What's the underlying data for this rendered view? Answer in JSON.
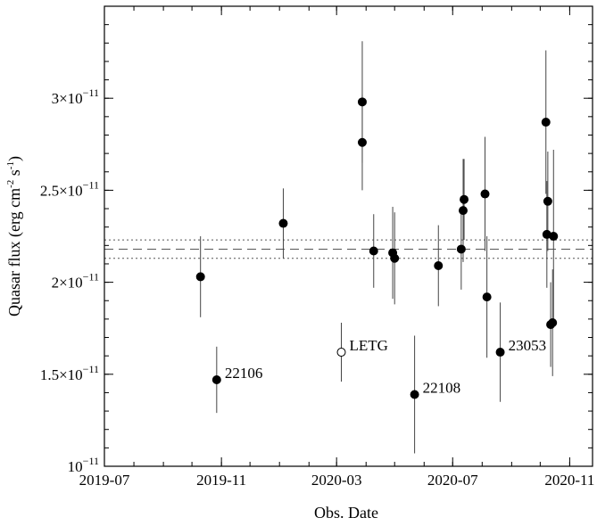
{
  "chart_data": {
    "type": "scatter",
    "xlabel": "Obs. Date",
    "ylabel_main": "Quasar flux (erg cm",
    "ylabel_sup1": "-2",
    "ylabel_mid": " s",
    "ylabel_sup2": "-1",
    "ylabel_end": ")",
    "x_range": [
      "2019-07-01",
      "2020-11-25"
    ],
    "y_range": [
      1e-11,
      3.5e-11
    ],
    "x_ticks": [
      {
        "date": "2019-07-01",
        "label": "2019-07"
      },
      {
        "date": "2019-11-01",
        "label": "2019-11"
      },
      {
        "date": "2020-03-01",
        "label": "2020-03"
      },
      {
        "date": "2020-07-01",
        "label": "2020-07"
      },
      {
        "date": "2020-11-01",
        "label": "2020-11"
      }
    ],
    "y_ticks": [
      {
        "value": 1e-11,
        "mantissa": "",
        "base": "10",
        "exp": "−11"
      },
      {
        "value": 1.5e-11,
        "mantissa": "1.5×",
        "base": "10",
        "exp": "−11"
      },
      {
        "value": 2e-11,
        "mantissa": "2×",
        "base": "10",
        "exp": "−11"
      },
      {
        "value": 2.5e-11,
        "mantissa": "2.5×",
        "base": "10",
        "exp": "−11"
      },
      {
        "value": 3e-11,
        "mantissa": "3×",
        "base": "10",
        "exp": "−11"
      }
    ],
    "reference_lines": [
      {
        "value": 2.18e-11,
        "style": "dashed"
      },
      {
        "value": 2.23e-11,
        "style": "dotted"
      },
      {
        "value": 2.13e-11,
        "style": "dotted"
      }
    ],
    "points": [
      {
        "date": "2019-10-10",
        "y": 2.03e-11,
        "err": 2.2e-12,
        "fill": "filled"
      },
      {
        "date": "2019-10-27",
        "y": 1.47e-11,
        "err": 1.8e-12,
        "fill": "filled",
        "label": "22106"
      },
      {
        "date": "2020-01-05",
        "y": 2.32e-11,
        "err": 1.9e-12,
        "fill": "filled"
      },
      {
        "date": "2020-03-06",
        "y": 1.62e-11,
        "err": 1.6e-12,
        "fill": "open",
        "label": "LETG"
      },
      {
        "date": "2020-03-28",
        "y": 2.98e-11,
        "err": 3.3e-12,
        "fill": "filled"
      },
      {
        "date": "2020-03-28",
        "y": 2.76e-11,
        "err": 2.6e-12,
        "fill": "filled"
      },
      {
        "date": "2020-04-09",
        "y": 2.17e-11,
        "err": 2e-12,
        "fill": "filled"
      },
      {
        "date": "2020-04-29",
        "y": 2.16e-11,
        "err": 2.5e-12,
        "fill": "filled"
      },
      {
        "date": "2020-05-01",
        "y": 2.13e-11,
        "err": 2.5e-12,
        "fill": "filled"
      },
      {
        "date": "2020-05-22",
        "y": 1.39e-11,
        "err": 3.2e-12,
        "fill": "filled",
        "label": "22108"
      },
      {
        "date": "2020-06-16",
        "y": 2.09e-11,
        "err": 2.2e-12,
        "fill": "filled"
      },
      {
        "date": "2020-07-10",
        "y": 2.18e-11,
        "err": 2.2e-12,
        "fill": "filled"
      },
      {
        "date": "2020-07-12",
        "y": 2.39e-11,
        "err": 2.8e-12,
        "fill": "filled"
      },
      {
        "date": "2020-07-13",
        "y": 2.45e-11,
        "err": 2.2e-12,
        "fill": "filled"
      },
      {
        "date": "2020-08-04",
        "y": 2.48e-11,
        "err": 3.1e-12,
        "fill": "filled"
      },
      {
        "date": "2020-08-06",
        "y": 1.92e-11,
        "err": 3.3e-12,
        "fill": "filled"
      },
      {
        "date": "2020-08-20",
        "y": 1.62e-11,
        "err": 2.7e-12,
        "fill": "filled",
        "label": "23053"
      },
      {
        "date": "2020-10-07",
        "y": 2.87e-11,
        "err": 3.9e-12,
        "fill": "filled"
      },
      {
        "date": "2020-10-08",
        "y": 2.26e-11,
        "err": 2.9e-12,
        "fill": "filled"
      },
      {
        "date": "2020-10-09",
        "y": 2.44e-11,
        "err": 2.7e-12,
        "fill": "filled"
      },
      {
        "date": "2020-10-12",
        "y": 1.77e-11,
        "err": 2.3e-12,
        "fill": "filled"
      },
      {
        "date": "2020-10-14",
        "y": 1.78e-11,
        "err": 2.9e-12,
        "fill": "filled"
      },
      {
        "date": "2020-10-15",
        "y": 2.25e-11,
        "err": 4.7e-12,
        "fill": "filled"
      }
    ],
    "grid": false,
    "legend": "none"
  }
}
